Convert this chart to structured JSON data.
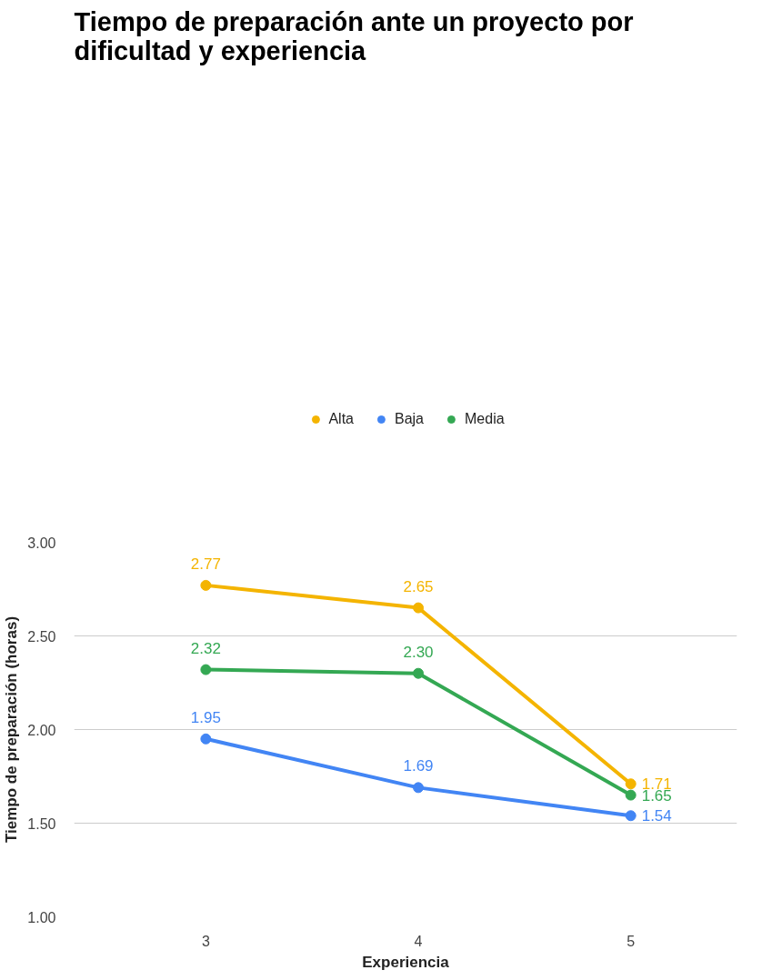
{
  "chart_data": {
    "type": "line",
    "title": "Tiempo de preparación ante un proyecto por dificultad y experiencia",
    "xlabel": "Experiencia",
    "ylabel": "Tiempo de preparación (horas)",
    "categories": [
      "3",
      "4",
      "5"
    ],
    "series": [
      {
        "name": "Alta",
        "color": "#f4b400",
        "values": [
          2.77,
          2.65,
          1.71
        ],
        "value_labels": [
          "2.77",
          "2.65",
          "1.71"
        ]
      },
      {
        "name": "Baja",
        "color": "#4285f4",
        "values": [
          1.95,
          1.69,
          1.54
        ],
        "value_labels": [
          "1.95",
          "1.69",
          "1.54"
        ]
      },
      {
        "name": "Media",
        "color": "#34a853",
        "values": [
          2.32,
          2.3,
          1.65
        ],
        "value_labels": [
          "2.32",
          "2.30",
          "1.65"
        ]
      }
    ],
    "ylim": [
      1,
      3
    ],
    "yticks": [
      {
        "value": 1,
        "label": "1.00"
      },
      {
        "value": 1.5,
        "label": "1.50"
      },
      {
        "value": 2,
        "label": "2.00"
      },
      {
        "value": 2.5,
        "label": "2.50"
      },
      {
        "value": 3,
        "label": "3.00"
      }
    ],
    "grid": "y",
    "legend": "top",
    "marker": "circle",
    "line_style": "solid"
  }
}
